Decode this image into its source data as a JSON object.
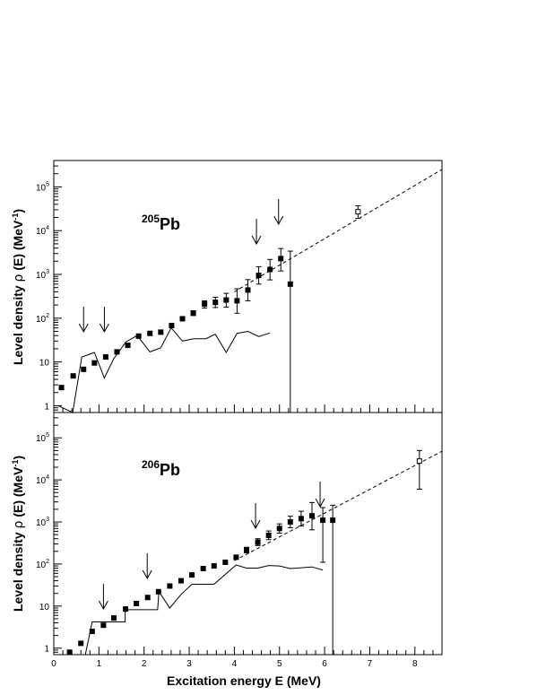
{
  "xlabel": "Excitation energy E (MeV)",
  "colors": {
    "ink": "#000000",
    "background": "#ffffff"
  },
  "chart_data": [
    {
      "type": "scatter",
      "panel": "top",
      "nucleus_mass": "205",
      "nucleus_symbol": "Pb",
      "ylabel_prefix": "Level density ",
      "ylabel_rho": "ρ",
      "ylabel_mid": " (E) (MeV",
      "ylabel_exp": "-1",
      "ylabel_suffix": ")",
      "xlabel": "",
      "xlim": [
        0,
        8.6
      ],
      "ylim": [
        0.7,
        400000
      ],
      "yscale": "log",
      "x_ticks": [
        "0",
        "1",
        "2",
        "3",
        "4",
        "5",
        "6",
        "7",
        "8"
      ],
      "y_ticks": [
        {
          "value": 1,
          "base": "1",
          "exp": ""
        },
        {
          "value": 10,
          "base": "10",
          "exp": ""
        },
        {
          "value": 100,
          "base": "10",
          "exp": "2"
        },
        {
          "value": 1000,
          "base": "10",
          "exp": "3"
        },
        {
          "value": 10000,
          "base": "10",
          "exp": "4"
        },
        {
          "value": 100000,
          "base": "10",
          "exp": "5"
        }
      ],
      "series": [
        {
          "type": "scatter",
          "marker": "filled-square",
          "points": [
            {
              "x": 0.17,
              "y": 2.6
            },
            {
              "x": 0.43,
              "y": 4.8
            },
            {
              "x": 0.66,
              "y": 6.8
            },
            {
              "x": 0.9,
              "y": 9.5
            },
            {
              "x": 1.15,
              "y": 13
            },
            {
              "x": 1.4,
              "y": 17
            },
            {
              "x": 1.64,
              "y": 24
            },
            {
              "x": 1.88,
              "y": 39
            },
            {
              "x": 2.13,
              "y": 45
            },
            {
              "x": 2.37,
              "y": 48
            },
            {
              "x": 2.61,
              "y": 68
            },
            {
              "x": 2.85,
              "y": 97
            },
            {
              "x": 3.09,
              "y": 130,
              "ylo": 115,
              "yhi": 148
            },
            {
              "x": 3.34,
              "y": 210,
              "ylo": 170,
              "yhi": 250
            },
            {
              "x": 3.58,
              "y": 230,
              "ylo": 175,
              "yhi": 300
            },
            {
              "x": 3.82,
              "y": 260,
              "ylo": 180,
              "yhi": 370
            },
            {
              "x": 4.06,
              "y": 250,
              "ylo": 130,
              "yhi": 470
            },
            {
              "x": 4.3,
              "y": 440,
              "ylo": 250,
              "yhi": 760
            },
            {
              "x": 4.54,
              "y": 950,
              "ylo": 600,
              "yhi": 1500
            },
            {
              "x": 4.79,
              "y": 1300,
              "ylo": 750,
              "yhi": 2200
            },
            {
              "x": 5.03,
              "y": 2300,
              "ylo": 1200,
              "yhi": 3900
            },
            {
              "x": 5.24,
              "y": 600,
              "ylo": 0.7,
              "yhi": 3400
            }
          ]
        },
        {
          "type": "scatter",
          "marker": "open-square",
          "points": [
            {
              "x": 6.74,
              "y": 27000,
              "ylo": 19000,
              "yhi": 37000
            }
          ]
        },
        {
          "type": "line",
          "style": "solid",
          "points": [
            {
              "x": 0.1,
              "y": 1.0
            },
            {
              "x": 0.42,
              "y": 0.55
            },
            {
              "x": 0.62,
              "y": 13
            },
            {
              "x": 0.9,
              "y": 16.5
            },
            {
              "x": 1.12,
              "y": 4.3
            },
            {
              "x": 1.33,
              "y": 12
            },
            {
              "x": 1.6,
              "y": 29
            },
            {
              "x": 1.85,
              "y": 40
            },
            {
              "x": 2.13,
              "y": 17
            },
            {
              "x": 2.37,
              "y": 21
            },
            {
              "x": 2.6,
              "y": 60
            },
            {
              "x": 2.85,
              "y": 30
            },
            {
              "x": 3.1,
              "y": 34
            },
            {
              "x": 3.37,
              "y": 34
            },
            {
              "x": 3.58,
              "y": 43
            },
            {
              "x": 3.82,
              "y": 16.5
            },
            {
              "x": 4.06,
              "y": 45
            },
            {
              "x": 4.3,
              "y": 50
            },
            {
              "x": 4.54,
              "y": 38
            },
            {
              "x": 4.79,
              "y": 46
            }
          ]
        },
        {
          "type": "line",
          "style": "dashed",
          "points": [
            {
              "x": 4.0,
              "y": 400
            },
            {
              "x": 8.6,
              "y": 250000
            }
          ]
        }
      ],
      "arrows_x": [
        0.66,
        1.12,
        4.49,
        4.98
      ]
    },
    {
      "type": "scatter",
      "panel": "bottom",
      "nucleus_mass": "206",
      "nucleus_symbol": "Pb",
      "ylabel_prefix": "Level density ",
      "ylabel_rho": "ρ",
      "ylabel_mid": " (E) (MeV",
      "ylabel_exp": "-1",
      "ylabel_suffix": ")",
      "xlabel": "Excitation energy E (MeV)",
      "xlim": [
        0,
        8.6
      ],
      "ylim": [
        0.7,
        400000
      ],
      "yscale": "log",
      "x_ticks": [
        "0",
        "1",
        "2",
        "3",
        "4",
        "5",
        "6",
        "7",
        "8"
      ],
      "y_ticks": [
        {
          "value": 1,
          "base": "1",
          "exp": ""
        },
        {
          "value": 10,
          "base": "10",
          "exp": ""
        },
        {
          "value": 100,
          "base": "10",
          "exp": "2"
        },
        {
          "value": 1000,
          "base": "10",
          "exp": "3"
        },
        {
          "value": 10000,
          "base": "10",
          "exp": "4"
        },
        {
          "value": 100000,
          "base": "10",
          "exp": "5"
        }
      ],
      "series": [
        {
          "type": "scatter",
          "marker": "filled-square",
          "points": [
            {
              "x": 0.35,
              "y": 0.8
            },
            {
              "x": 0.6,
              "y": 1.3
            },
            {
              "x": 0.85,
              "y": 2.5
            },
            {
              "x": 1.1,
              "y": 3.5
            },
            {
              "x": 1.33,
              "y": 5.2
            },
            {
              "x": 1.59,
              "y": 8.5
            },
            {
              "x": 1.83,
              "y": 11.5
            },
            {
              "x": 2.08,
              "y": 16
            },
            {
              "x": 2.32,
              "y": 22
            },
            {
              "x": 2.57,
              "y": 30
            },
            {
              "x": 2.82,
              "y": 40
            },
            {
              "x": 3.06,
              "y": 55
            },
            {
              "x": 3.31,
              "y": 78
            },
            {
              "x": 3.55,
              "y": 90
            },
            {
              "x": 3.8,
              "y": 110
            },
            {
              "x": 4.04,
              "y": 145
            },
            {
              "x": 4.27,
              "y": 215,
              "ylo": 185,
              "yhi": 250
            },
            {
              "x": 4.52,
              "y": 330,
              "ylo": 275,
              "yhi": 400
            },
            {
              "x": 4.76,
              "y": 480,
              "ylo": 380,
              "yhi": 610
            },
            {
              "x": 5.0,
              "y": 700,
              "ylo": 540,
              "yhi": 900
            },
            {
              "x": 5.24,
              "y": 1000,
              "ylo": 730,
              "yhi": 1370
            },
            {
              "x": 5.48,
              "y": 1200,
              "ylo": 800,
              "yhi": 1800
            },
            {
              "x": 5.72,
              "y": 1400,
              "ylo": 650,
              "yhi": 2900
            },
            {
              "x": 5.96,
              "y": 1100,
              "ylo": 110,
              "yhi": 2200
            },
            {
              "x": 6.18,
              "y": 1100,
              "ylo": 0.7,
              "yhi": 2500
            }
          ]
        },
        {
          "type": "scatter",
          "marker": "open-square",
          "points": [
            {
              "x": 8.1,
              "y": 28000,
              "ylo": 6000,
              "yhi": 50000
            }
          ]
        },
        {
          "type": "line",
          "style": "solid",
          "points": [
            {
              "x": 0.7,
              "y": 0.7
            },
            {
              "x": 0.85,
              "y": 4.2
            },
            {
              "x": 1.58,
              "y": 4.2
            },
            {
              "x": 1.58,
              "y": 8.2
            },
            {
              "x": 2.3,
              "y": 8.2
            },
            {
              "x": 2.33,
              "y": 22
            },
            {
              "x": 2.57,
              "y": 9
            },
            {
              "x": 2.82,
              "y": 19
            },
            {
              "x": 3.06,
              "y": 33
            },
            {
              "x": 3.55,
              "y": 33
            },
            {
              "x": 4.04,
              "y": 95
            },
            {
              "x": 4.27,
              "y": 80
            },
            {
              "x": 4.52,
              "y": 80
            },
            {
              "x": 4.76,
              "y": 92
            },
            {
              "x": 5.0,
              "y": 90
            },
            {
              "x": 5.24,
              "y": 78
            },
            {
              "x": 5.72,
              "y": 85
            },
            {
              "x": 5.96,
              "y": 72
            }
          ]
        },
        {
          "type": "line",
          "style": "dashed",
          "points": [
            {
              "x": 4.0,
              "y": 120
            },
            {
              "x": 8.6,
              "y": 48000
            }
          ]
        }
      ],
      "arrows_x": [
        1.1,
        2.07,
        4.47,
        5.9
      ]
    }
  ]
}
